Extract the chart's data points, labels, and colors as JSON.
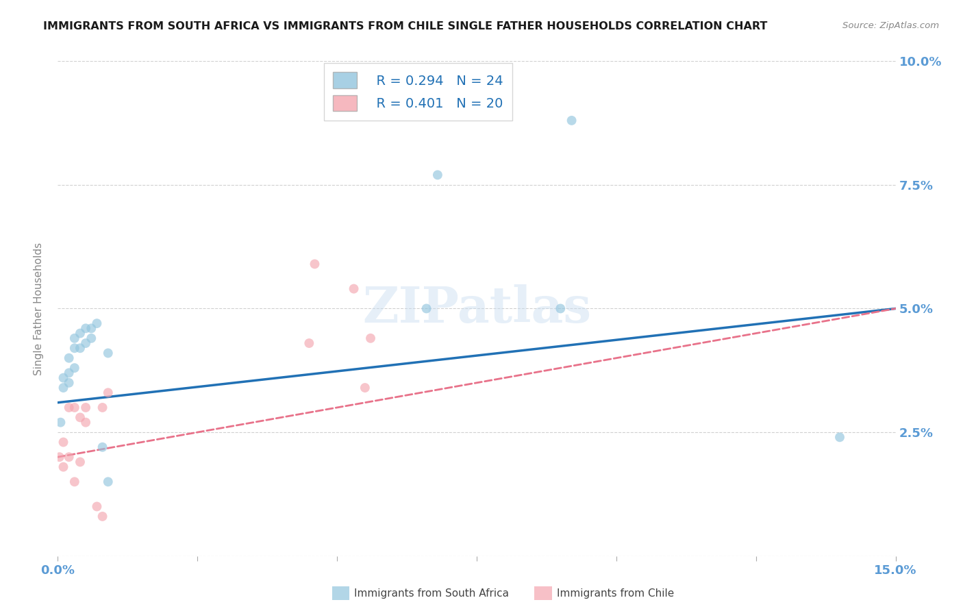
{
  "title": "IMMIGRANTS FROM SOUTH AFRICA VS IMMIGRANTS FROM CHILE SINGLE FATHER HOUSEHOLDS CORRELATION CHART",
  "source": "Source: ZipAtlas.com",
  "ylabel": "Single Father Households",
  "xlim": [
    0.0,
    0.15
  ],
  "ylim": [
    0.0,
    0.1
  ],
  "xticks": [
    0.0,
    0.025,
    0.05,
    0.075,
    0.1,
    0.125,
    0.15
  ],
  "yticks": [
    0.0,
    0.025,
    0.05,
    0.075,
    0.1
  ],
  "ytick_labels": [
    "",
    "2.5%",
    "5.0%",
    "7.5%",
    "10.0%"
  ],
  "xtick_labels": [
    "0.0%",
    "",
    "",
    "",
    "",
    "",
    "15.0%"
  ],
  "blue_color": "#92c5de",
  "pink_color": "#f4a6b0",
  "legend_blue_r": "R = 0.294",
  "legend_blue_n": "N = 24",
  "legend_pink_r": "R = 0.401",
  "legend_pink_n": "N = 20",
  "south_africa_x": [
    0.0005,
    0.001,
    0.001,
    0.002,
    0.002,
    0.002,
    0.003,
    0.003,
    0.003,
    0.004,
    0.004,
    0.005,
    0.005,
    0.006,
    0.006,
    0.007,
    0.008,
    0.009,
    0.009,
    0.066,
    0.068,
    0.09,
    0.092,
    0.14
  ],
  "south_africa_y": [
    0.027,
    0.034,
    0.036,
    0.035,
    0.037,
    0.04,
    0.038,
    0.042,
    0.044,
    0.042,
    0.045,
    0.043,
    0.046,
    0.044,
    0.046,
    0.047,
    0.022,
    0.015,
    0.041,
    0.05,
    0.077,
    0.05,
    0.088,
    0.024
  ],
  "chile_x": [
    0.0003,
    0.001,
    0.001,
    0.002,
    0.002,
    0.003,
    0.003,
    0.004,
    0.004,
    0.005,
    0.005,
    0.007,
    0.008,
    0.008,
    0.009,
    0.045,
    0.046,
    0.053,
    0.055,
    0.056
  ],
  "chile_y": [
    0.02,
    0.018,
    0.023,
    0.02,
    0.03,
    0.015,
    0.03,
    0.019,
    0.028,
    0.027,
    0.03,
    0.01,
    0.008,
    0.03,
    0.033,
    0.043,
    0.059,
    0.054,
    0.034,
    0.044
  ],
  "south_africa_size": 100,
  "chile_size": 100,
  "blue_line_color": "#2171b5",
  "pink_line_color": "#e8728a",
  "axis_color": "#5b9bd5",
  "grid_color": "#d0d0d0",
  "background": "#ffffff",
  "watermark": "ZIPatlas",
  "blue_trend": [
    0.031,
    0.05
  ],
  "pink_trend": [
    0.02,
    0.05
  ]
}
